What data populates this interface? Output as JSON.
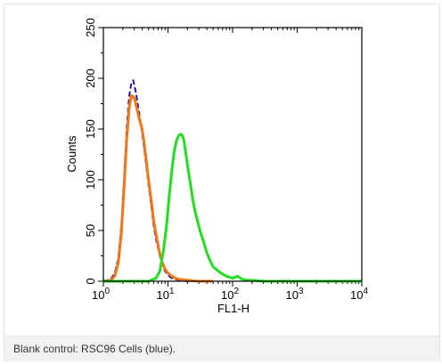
{
  "chart_data": {
    "type": "line",
    "xlabel": "FL1-H",
    "ylabel": "Counts",
    "x_scale": "log",
    "xlim": [
      1,
      10000
    ],
    "ylim": [
      0,
      250
    ],
    "x_ticks": [
      {
        "value": 1,
        "base": "10",
        "exp": "0"
      },
      {
        "value": 10,
        "base": "10",
        "exp": "1"
      },
      {
        "value": 100,
        "base": "10",
        "exp": "2"
      },
      {
        "value": 1000,
        "base": "10",
        "exp": "3"
      },
      {
        "value": 10000,
        "base": "10",
        "exp": "4"
      }
    ],
    "y_ticks": [
      "0",
      "50",
      "100",
      "150",
      "200",
      "250"
    ],
    "grid": false,
    "series": [
      {
        "color": "#1a1aa8",
        "x": [
          1.0,
          1.3,
          1.5,
          1.7,
          1.9,
          2.1,
          2.3,
          2.5,
          2.7,
          2.9,
          3.1,
          3.3,
          3.6,
          3.9,
          4.2,
          4.6,
          5.0,
          5.5,
          6.0,
          6.6,
          7.3,
          8.0,
          9.0,
          10.0,
          11.5,
          13.0,
          15.0,
          20.0,
          30.0,
          50.0
        ],
        "y": [
          0,
          2,
          8,
          22,
          55,
          105,
          150,
          182,
          195,
          198,
          190,
          180,
          165,
          150,
          135,
          115,
          95,
          75,
          55,
          40,
          28,
          18,
          10,
          6,
          3,
          2,
          1,
          0,
          0,
          0
        ]
      },
      {
        "color": "#f07818",
        "x": [
          1.0,
          1.3,
          1.5,
          1.7,
          1.9,
          2.1,
          2.3,
          2.5,
          2.7,
          2.9,
          3.1,
          3.3,
          3.6,
          3.9,
          4.2,
          4.6,
          5.0,
          5.5,
          6.0,
          6.6,
          7.3,
          8.0,
          9.0,
          10.0,
          11.5,
          13.0,
          15.0,
          20.0,
          30.0,
          50.0
        ],
        "y": [
          0,
          1,
          5,
          18,
          48,
          95,
          140,
          170,
          183,
          182,
          178,
          170,
          160,
          152,
          140,
          120,
          100,
          80,
          60,
          45,
          30,
          20,
          12,
          8,
          5,
          3,
          2,
          1,
          0,
          0
        ]
      },
      {
        "color": "#22dd22",
        "x": [
          1.0,
          5.0,
          6.5,
          7.5,
          8.5,
          9.5,
          10.5,
          11.5,
          12.5,
          13.5,
          14.5,
          15.5,
          16.5,
          17.5,
          18.5,
          20.0,
          22.0,
          24.0,
          26.0,
          29.0,
          32.0,
          36.0,
          40.0,
          45.0,
          50.0,
          60.0,
          70.0,
          80.0,
          100.0,
          120.0,
          140.0,
          170.0,
          200.0,
          300.0,
          500.0,
          1000.0,
          10000.0
        ],
        "y": [
          0,
          0,
          3,
          10,
          30,
          55,
          85,
          110,
          128,
          138,
          143,
          145,
          144,
          140,
          130,
          115,
          98,
          82,
          70,
          58,
          48,
          38,
          28,
          20,
          14,
          10,
          7,
          5,
          3,
          5,
          2,
          1,
          1,
          0,
          0,
          0,
          0
        ]
      }
    ]
  },
  "caption": "Blank control: RSC96 Cells (blue)."
}
